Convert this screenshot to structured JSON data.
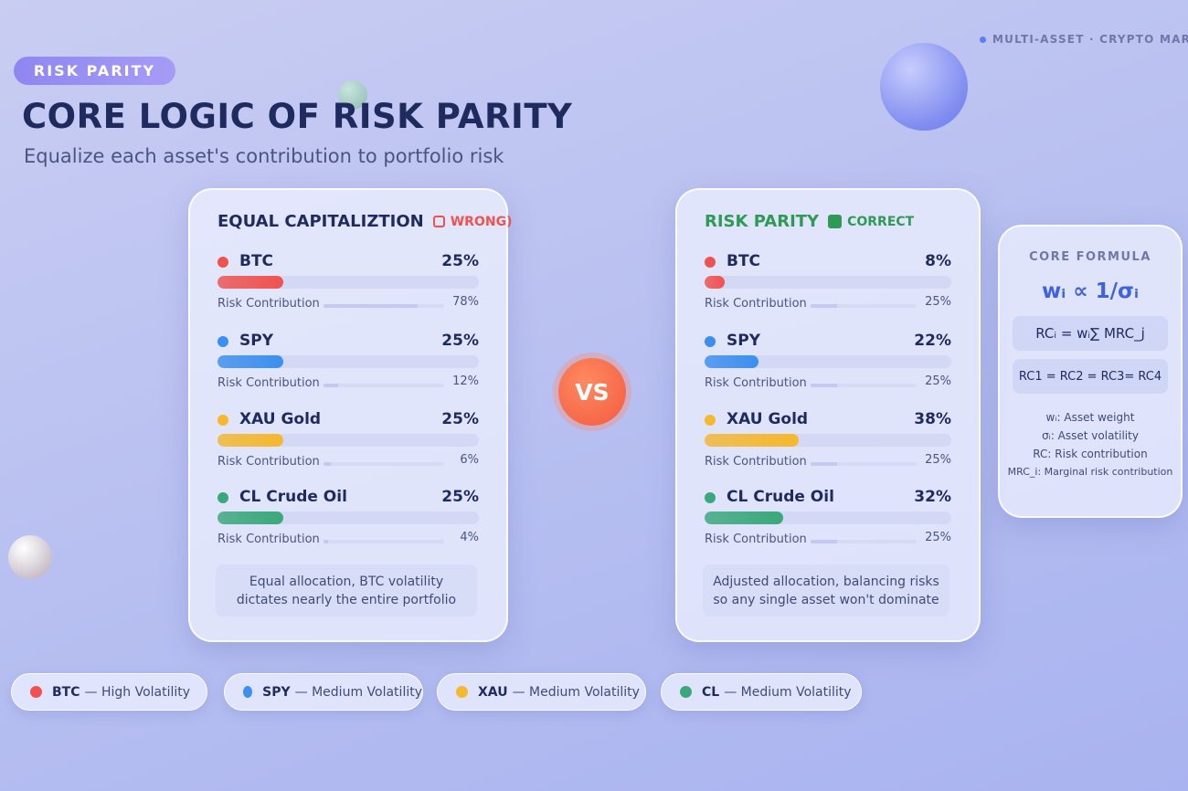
{
  "tag": "RISK PARITY",
  "top_note": "MULTI-ASSET · CRYPTO MAR",
  "title": "CORE LOGIC OF RISK PARITY",
  "subtitle": "Equalize each asset's contribution to portfolio risk",
  "panels": [
    {
      "title": "EQUAL CAPITALIZTION",
      "verdict": "WRONG)",
      "verdict_color": "#f0524f",
      "title_color": "#1f2b5e",
      "risk_label": "Risk Contribution",
      "assets": [
        {
          "name": "BTC",
          "color": "#f0524f",
          "weight": "25%",
          "risk": "78%"
        },
        {
          "name": "SPY",
          "color": "#3b8ff0",
          "weight": "25%",
          "risk": "12%"
        },
        {
          "name": "XAU Gold",
          "color": "#f5b82e",
          "weight": "25%",
          "risk": "6%"
        },
        {
          "name": "CL Crude Oil",
          "color": "#3aa87a",
          "weight": "25%",
          "risk": "4%"
        }
      ],
      "note": "Equal allocation, BTC volatility dictates nearly the entire portfolio"
    },
    {
      "title": "RISK PARITY",
      "verdict": "CORRECT",
      "verdict_color": "#2f9a55",
      "title_color": "#2f9a55",
      "risk_label": "Risk Contribution",
      "assets": [
        {
          "name": "BTC",
          "color": "#f0524f",
          "weight": "8%",
          "risk": "25%"
        },
        {
          "name": "SPY",
          "color": "#3b8ff0",
          "weight": "22%",
          "risk": "25%"
        },
        {
          "name": "XAU Gold",
          "color": "#f5b82e",
          "weight": "38%",
          "risk": "25%"
        },
        {
          "name": "CL Crude Oil",
          "color": "#3aa87a",
          "weight": "32%",
          "risk": "25%"
        }
      ],
      "note": "Adjusted allocation, balancing risks so any single asset won't dominate"
    }
  ],
  "vs": "VS",
  "formula": {
    "title": "CORE FORMULA",
    "main": "wᵢ ∝ 1/σᵢ",
    "boxes": [
      "RCᵢ = wᵢ∑ MRC_j",
      "RC1 = RC2 = RC3= RC4"
    ],
    "definitions": [
      "wᵢ: Asset weight",
      "σᵢ: Asset volatility",
      "RC: Risk contribution",
      "MRC_i: Marginal risk contribution"
    ]
  },
  "legend": [
    {
      "name": "BTC",
      "desc": "— High Volatility",
      "color": "#f0524f"
    },
    {
      "name": "SPY",
      "desc": "— Medium Volatility",
      "color": "#3b8ff0"
    },
    {
      "name": "XAU",
      "desc": "— Medium Volatility",
      "color": "#f5b82e"
    },
    {
      "name": "CL",
      "desc": "— Medium Volatility",
      "color": "#3aa87a"
    }
  ]
}
